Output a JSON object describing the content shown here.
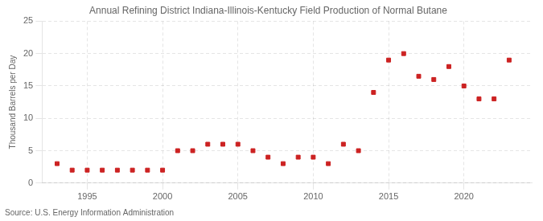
{
  "chart_data": {
    "type": "scatter",
    "title": "Annual Refining District Indiana-Illinois-Kentucky Field Production of Normal Butane",
    "ylabel": "Thousand Barrels per Day",
    "source": "Source: U.S. Energy Information Administration",
    "x": [
      1993,
      1994,
      1995,
      1996,
      1997,
      1998,
      1999,
      2000,
      2001,
      2002,
      2003,
      2004,
      2005,
      2006,
      2007,
      2008,
      2009,
      2010,
      2011,
      2012,
      2013,
      2014,
      2015,
      2016,
      2017,
      2018,
      2019,
      2020,
      2021,
      2022,
      2023
    ],
    "values": [
      3.0,
      2.0,
      2.0,
      2.0,
      2.0,
      2.0,
      2.0,
      2.0,
      5.0,
      5.0,
      6.0,
      6.0,
      6.0,
      5.0,
      4.0,
      3.0,
      4.0,
      4.0,
      3.0,
      6.0,
      5.0,
      14.0,
      19.0,
      20.0,
      16.5,
      16.0,
      18.0,
      15.0,
      13.0,
      13.0,
      19.0
    ],
    "color": "#cc2222",
    "marker": "square",
    "xlim": [
      1992.0,
      2024.5
    ],
    "xticks": [
      1995,
      2000,
      2005,
      2010,
      2015,
      2020
    ],
    "ylim": [
      0,
      25
    ],
    "yticks": [
      0,
      5,
      10,
      15,
      20,
      25
    ],
    "grid": true
  }
}
